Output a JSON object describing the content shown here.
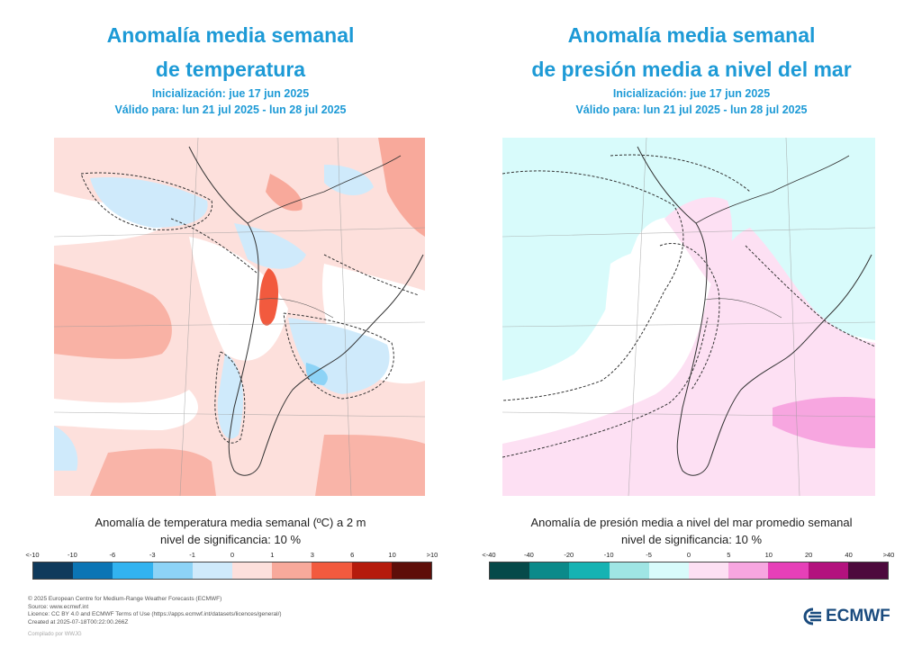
{
  "left_panel": {
    "title_line1": "Anomalía media semanal",
    "title_line2": "de temperatura",
    "init": "Inicialización: jue 17 jun 2025",
    "valid": "Válido para: lun 21 jul 2025 - lun 28 jul 2025",
    "caption_line1": "Anomalía de temperatura media semanal (ºC) a 2 m",
    "caption_line2": "nivel de significancia: 10 %",
    "ticks": [
      "<-10",
      "-10",
      "-6",
      "-3",
      "-1",
      "0",
      "1",
      "3",
      "6",
      "10",
      ">10"
    ],
    "colors": [
      "#0f3a5c",
      "#0b75b5",
      "#32b3f0",
      "#8dd3f6",
      "#cfeafb",
      "#fde0dc",
      "#f8a99b",
      "#f25a3e",
      "#b51b0c",
      "#5e0e09"
    ]
  },
  "right_panel": {
    "title_line1": "Anomalía media semanal",
    "title_line2": "de presión media a nivel del mar",
    "init": "Inicialización: jue 17 jun 2025",
    "valid": "Válido para: lun 21 jul 2025 - lun 28 jul 2025",
    "caption_line1": "Anomalía de presión media a nivel del mar promedio semanal",
    "caption_line2": "nivel de significancia: 10 %",
    "ticks": [
      "<-40",
      "-40",
      "-20",
      "-10",
      "-5",
      "0",
      "5",
      "10",
      "20",
      "40",
      ">40"
    ],
    "colors": [
      "#064a4a",
      "#0b8a8a",
      "#16b3b3",
      "#9fe5e4",
      "#d8fbfb",
      "#fde0f3",
      "#f7a6e0",
      "#e640b8",
      "#b3127e",
      "#4d0a3d"
    ]
  },
  "footer": {
    "line1": "© 2025 European Centre for Medium-Range Weather Forecasts (ECMWF)",
    "line2": "Source: www.ecmwf.int",
    "line3": "Licence: CC BY 4.0 and ECMWF Terms of Use (https://apps.ecmwf.int/datasets/licences/general/)",
    "line4": "Created at 2025-07-18T00:22:00.266Z",
    "compiled": "Compilado por WWJG"
  },
  "logo": {
    "text": "ECMWF",
    "icon": "ecmwf-logo-icon"
  }
}
